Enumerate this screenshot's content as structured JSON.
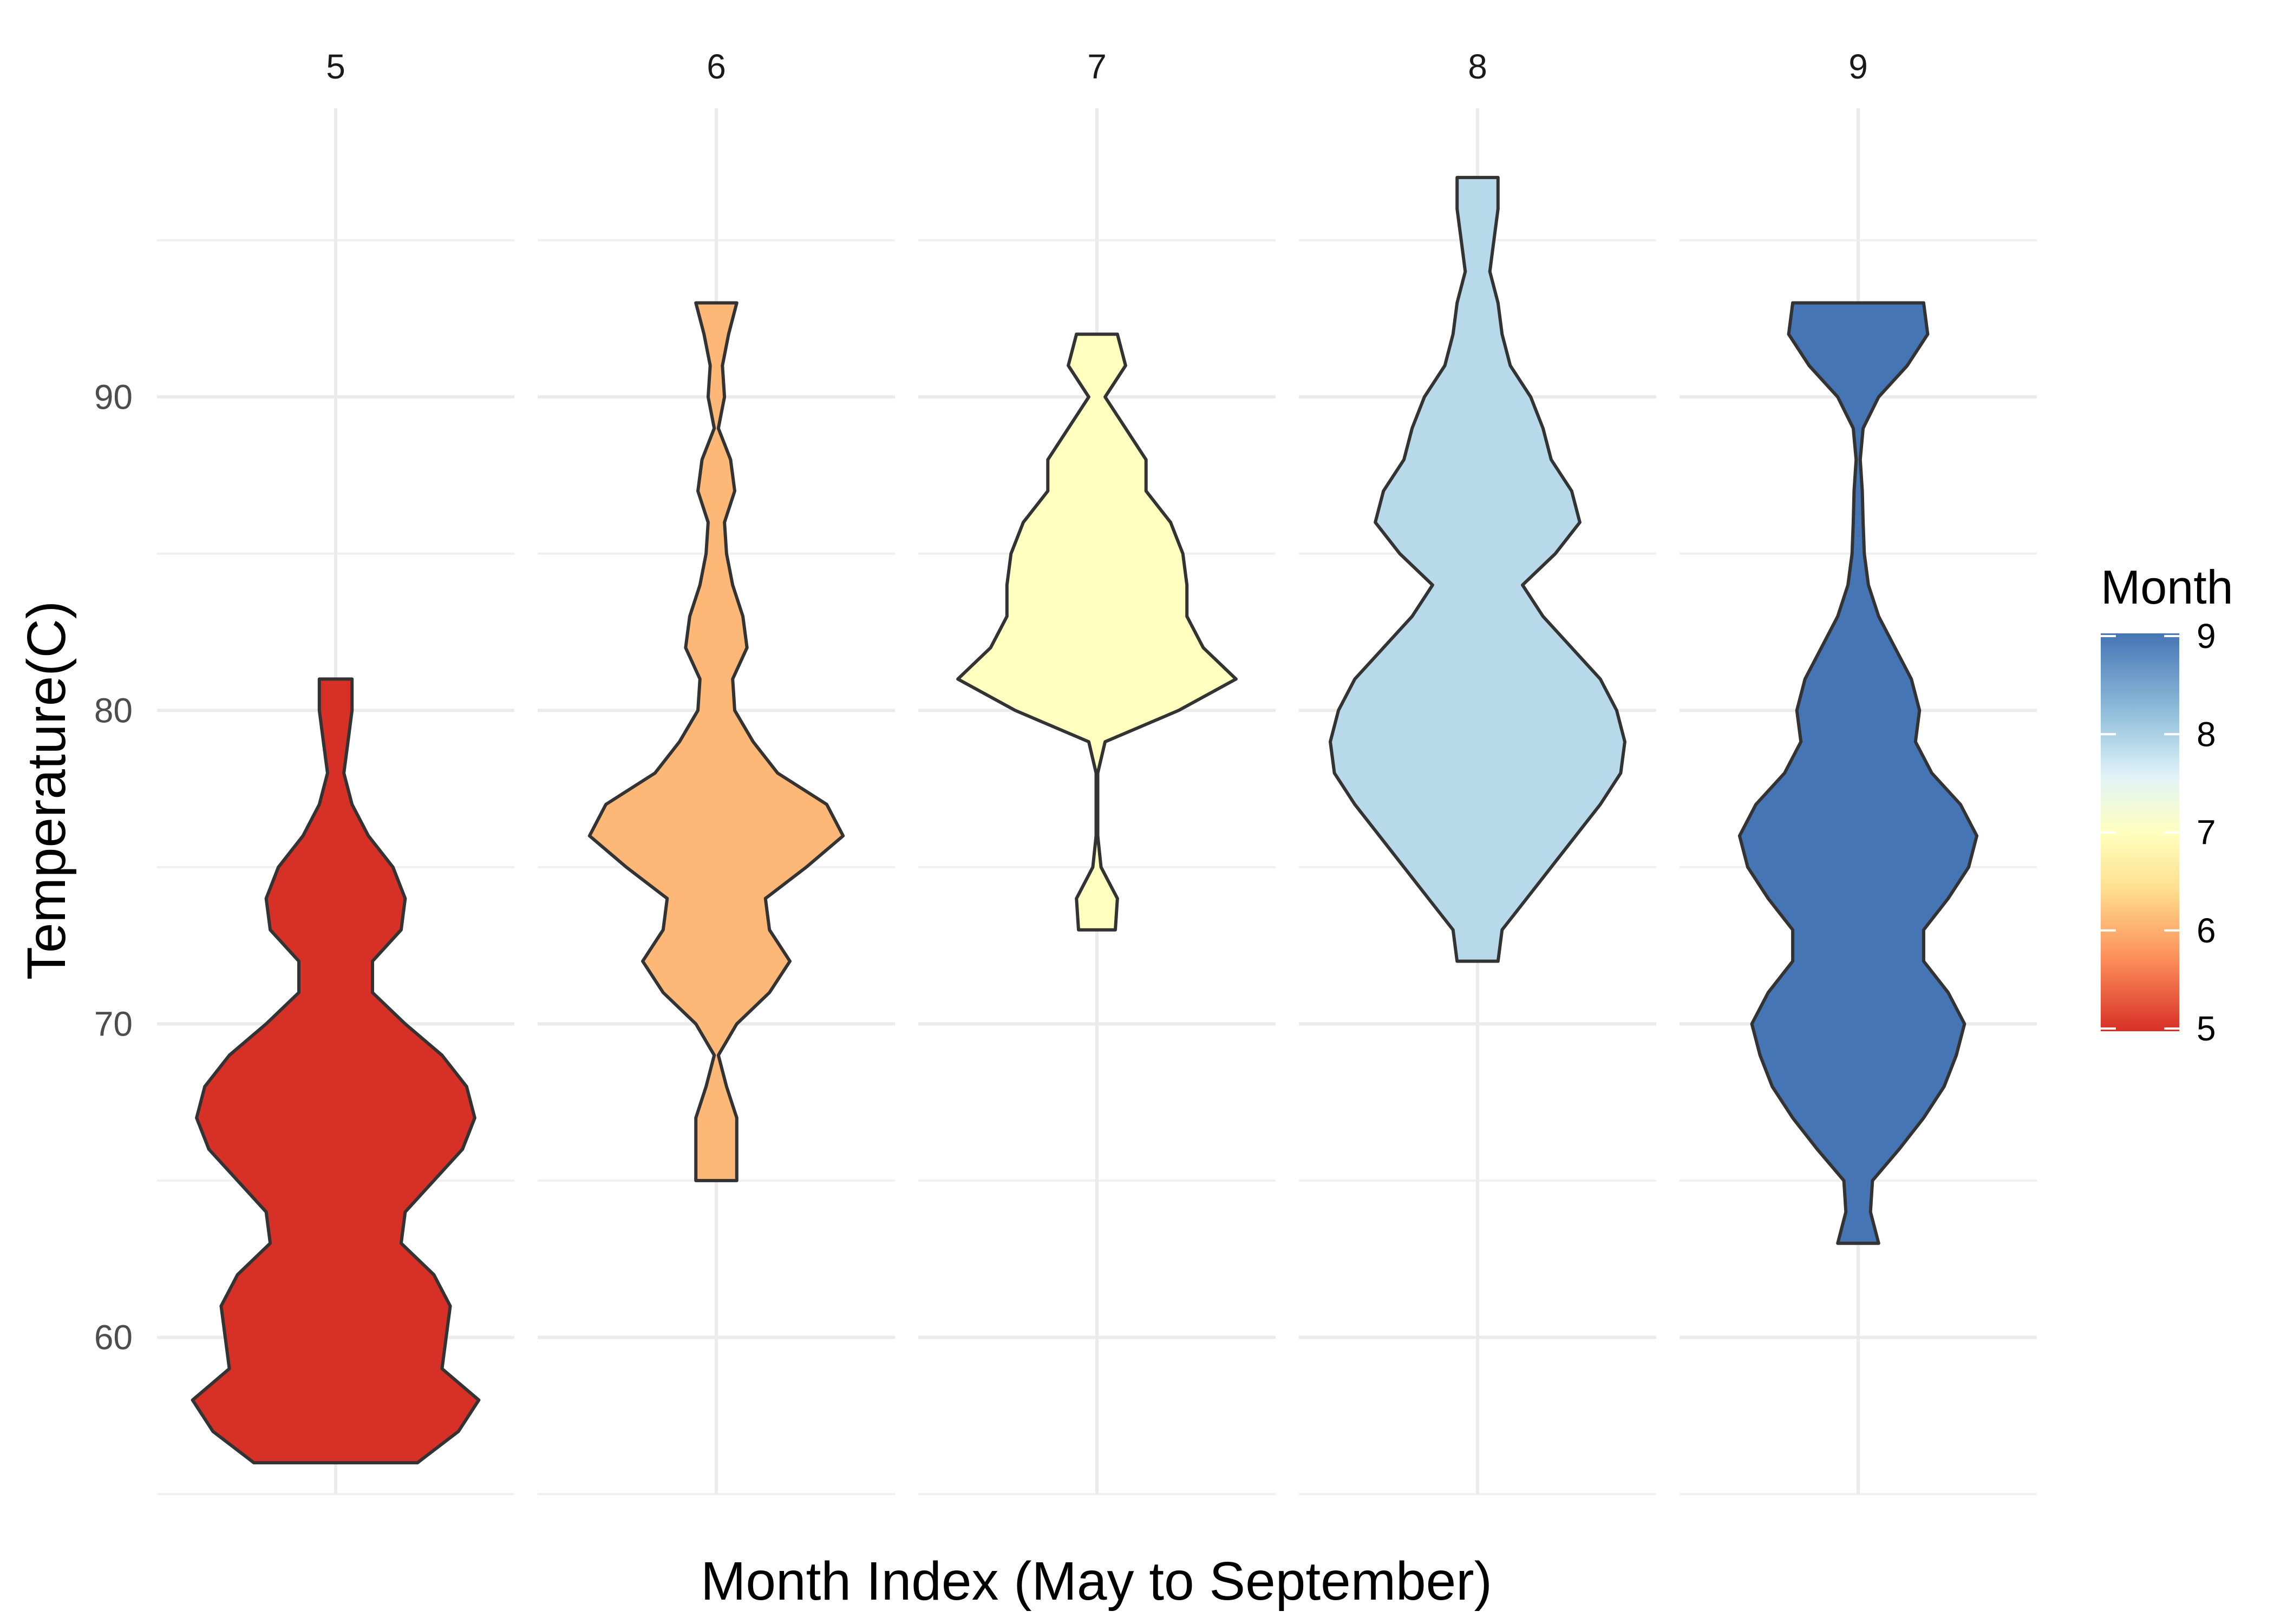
{
  "chart_data": {
    "type": "violin",
    "title": "",
    "xlabel": "Month Index (May to September)",
    "ylabel": "Temperature(C)",
    "ylim": [
      55,
      98
    ],
    "yticks": [
      60,
      70,
      80,
      90
    ],
    "grid": true,
    "facet_labels": [
      "5",
      "6",
      "7",
      "8",
      "9"
    ],
    "legend": {
      "title": "Month",
      "position": "right",
      "type": "colorbar",
      "ticks": [
        "5",
        "6",
        "7",
        "8",
        "9"
      ],
      "colors": [
        "#D73027",
        "#FC8D59",
        "#FEE090",
        "#FFFFBF",
        "#E0F3F8",
        "#91BFDB",
        "#4575B4"
      ]
    },
    "series": [
      {
        "category": "5",
        "fill": "#D73027",
        "min": 56,
        "max": 81,
        "density": [
          [
            56,
            2.0
          ],
          [
            57,
            3.0
          ],
          [
            58,
            3.5
          ],
          [
            59,
            2.6
          ],
          [
            60,
            2.7
          ],
          [
            61,
            2.8
          ],
          [
            62,
            2.4
          ],
          [
            63,
            1.6
          ],
          [
            64,
            1.7
          ],
          [
            65,
            2.4
          ],
          [
            66,
            3.1
          ],
          [
            67,
            3.4
          ],
          [
            68,
            3.2
          ],
          [
            69,
            2.6
          ],
          [
            70,
            1.7
          ],
          [
            71,
            0.9
          ],
          [
            72,
            0.9
          ],
          [
            73,
            1.6
          ],
          [
            74,
            1.7
          ],
          [
            75,
            1.4
          ],
          [
            76,
            0.8
          ],
          [
            77,
            0.4
          ],
          [
            78,
            0.2
          ],
          [
            79,
            0.3
          ],
          [
            80,
            0.4
          ],
          [
            81,
            0.4
          ]
        ]
      },
      {
        "category": "6",
        "fill": "#FDB777",
        "min": 65,
        "max": 93,
        "density": [
          [
            65,
            0.5
          ],
          [
            66,
            0.5
          ],
          [
            67,
            0.5
          ],
          [
            68,
            0.25
          ],
          [
            69,
            0.05
          ],
          [
            70,
            0.5
          ],
          [
            71,
            1.3
          ],
          [
            72,
            1.8
          ],
          [
            73,
            1.3
          ],
          [
            74,
            1.2
          ],
          [
            75,
            2.2
          ],
          [
            76,
            3.1
          ],
          [
            77,
            2.7
          ],
          [
            78,
            1.5
          ],
          [
            79,
            0.9
          ],
          [
            80,
            0.45
          ],
          [
            81,
            0.4
          ],
          [
            82,
            0.75
          ],
          [
            83,
            0.65
          ],
          [
            84,
            0.4
          ],
          [
            85,
            0.25
          ],
          [
            86,
            0.2
          ],
          [
            87,
            0.45
          ],
          [
            88,
            0.35
          ],
          [
            89,
            0.05
          ],
          [
            90,
            0.2
          ],
          [
            91,
            0.15
          ],
          [
            92,
            0.3
          ],
          [
            93,
            0.5
          ]
        ]
      },
      {
        "category": "7",
        "fill": "#FFFFBF",
        "min": 73,
        "max": 92,
        "density": [
          [
            73,
            0.45
          ],
          [
            74,
            0.5
          ],
          [
            75,
            0.1
          ],
          [
            76,
            0.02
          ],
          [
            77,
            0.02
          ],
          [
            78,
            0.02
          ],
          [
            79,
            0.2
          ],
          [
            80,
            2.0
          ],
          [
            81,
            3.4
          ],
          [
            82,
            2.6
          ],
          [
            83,
            2.2
          ],
          [
            84,
            2.2
          ],
          [
            85,
            2.1
          ],
          [
            86,
            1.8
          ],
          [
            87,
            1.2
          ],
          [
            88,
            1.2
          ],
          [
            89,
            0.7
          ],
          [
            90,
            0.2
          ],
          [
            91,
            0.7
          ],
          [
            92,
            0.5
          ]
        ]
      },
      {
        "category": "8",
        "fill": "#B8D9E9",
        "min": 72,
        "max": 97,
        "density": [
          [
            72,
            0.5
          ],
          [
            73,
            0.6
          ],
          [
            74,
            1.2
          ],
          [
            75,
            1.8
          ],
          [
            76,
            2.4
          ],
          [
            77,
            3.0
          ],
          [
            78,
            3.5
          ],
          [
            79,
            3.6
          ],
          [
            80,
            3.4
          ],
          [
            81,
            3.0
          ],
          [
            82,
            2.3
          ],
          [
            83,
            1.6
          ],
          [
            84,
            1.1
          ],
          [
            85,
            1.9
          ],
          [
            86,
            2.5
          ],
          [
            87,
            2.3
          ],
          [
            88,
            1.8
          ],
          [
            89,
            1.6
          ],
          [
            90,
            1.3
          ],
          [
            91,
            0.8
          ],
          [
            92,
            0.6
          ],
          [
            93,
            0.5
          ],
          [
            94,
            0.3
          ],
          [
            95,
            0.4
          ],
          [
            96,
            0.5
          ],
          [
            97,
            0.5
          ]
        ]
      },
      {
        "category": "9",
        "fill": "#4575B4",
        "min": 63,
        "max": 93,
        "density": [
          [
            63,
            0.5
          ],
          [
            64,
            0.3
          ],
          [
            65,
            0.35
          ],
          [
            66,
            1.0
          ],
          [
            67,
            1.6
          ],
          [
            68,
            2.1
          ],
          [
            69,
            2.4
          ],
          [
            70,
            2.6
          ],
          [
            71,
            2.2
          ],
          [
            72,
            1.6
          ],
          [
            73,
            1.6
          ],
          [
            74,
            2.2
          ],
          [
            75,
            2.7
          ],
          [
            76,
            2.9
          ],
          [
            77,
            2.5
          ],
          [
            78,
            1.8
          ],
          [
            79,
            1.4
          ],
          [
            80,
            1.5
          ],
          [
            81,
            1.3
          ],
          [
            82,
            0.9
          ],
          [
            83,
            0.5
          ],
          [
            84,
            0.25
          ],
          [
            85,
            0.15
          ],
          [
            86,
            0.12
          ],
          [
            87,
            0.1
          ],
          [
            88,
            0.05
          ],
          [
            89,
            0.12
          ],
          [
            90,
            0.5
          ],
          [
            91,
            1.2
          ],
          [
            92,
            1.7
          ],
          [
            93,
            1.6
          ]
        ]
      }
    ]
  }
}
